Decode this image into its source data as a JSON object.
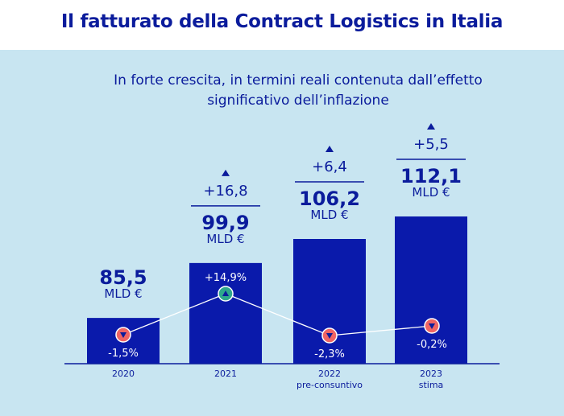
{
  "title": "Il fatturato della Contract Logistics in Italia",
  "subtitle_lines": [
    "In forte crescita, in termini reali contenuta dall’effetto",
    "significativo dell’inflazione"
  ],
  "colors": {
    "bar": "#0a1aab",
    "text": "#0b1c9c",
    "down_marker": "#ef6464",
    "up_marker": "#2ea88c",
    "line": "#ffffff",
    "background": "#c8e5f1"
  },
  "chart_data": {
    "type": "bar",
    "categories": [
      [
        "2020"
      ],
      [
        "2021"
      ],
      [
        "2022",
        "pre-consuntivo"
      ],
      [
        "2023",
        "stima"
      ]
    ],
    "values": [
      85.5,
      99.9,
      106.2,
      112.1
    ],
    "value_labels": [
      "85,5",
      "99,9",
      "106,2",
      "112,1"
    ],
    "unit": "MLD €",
    "increments": [
      null,
      "+16,8",
      "+6,4",
      "+5,5"
    ],
    "real_growth": {
      "type": "line",
      "values": [
        -1.5,
        14.9,
        -2.3,
        -0.2
      ],
      "labels": [
        "-1,5%",
        "+14,9%",
        "-2,3%",
        "-0,2%"
      ]
    },
    "grid": false
  }
}
